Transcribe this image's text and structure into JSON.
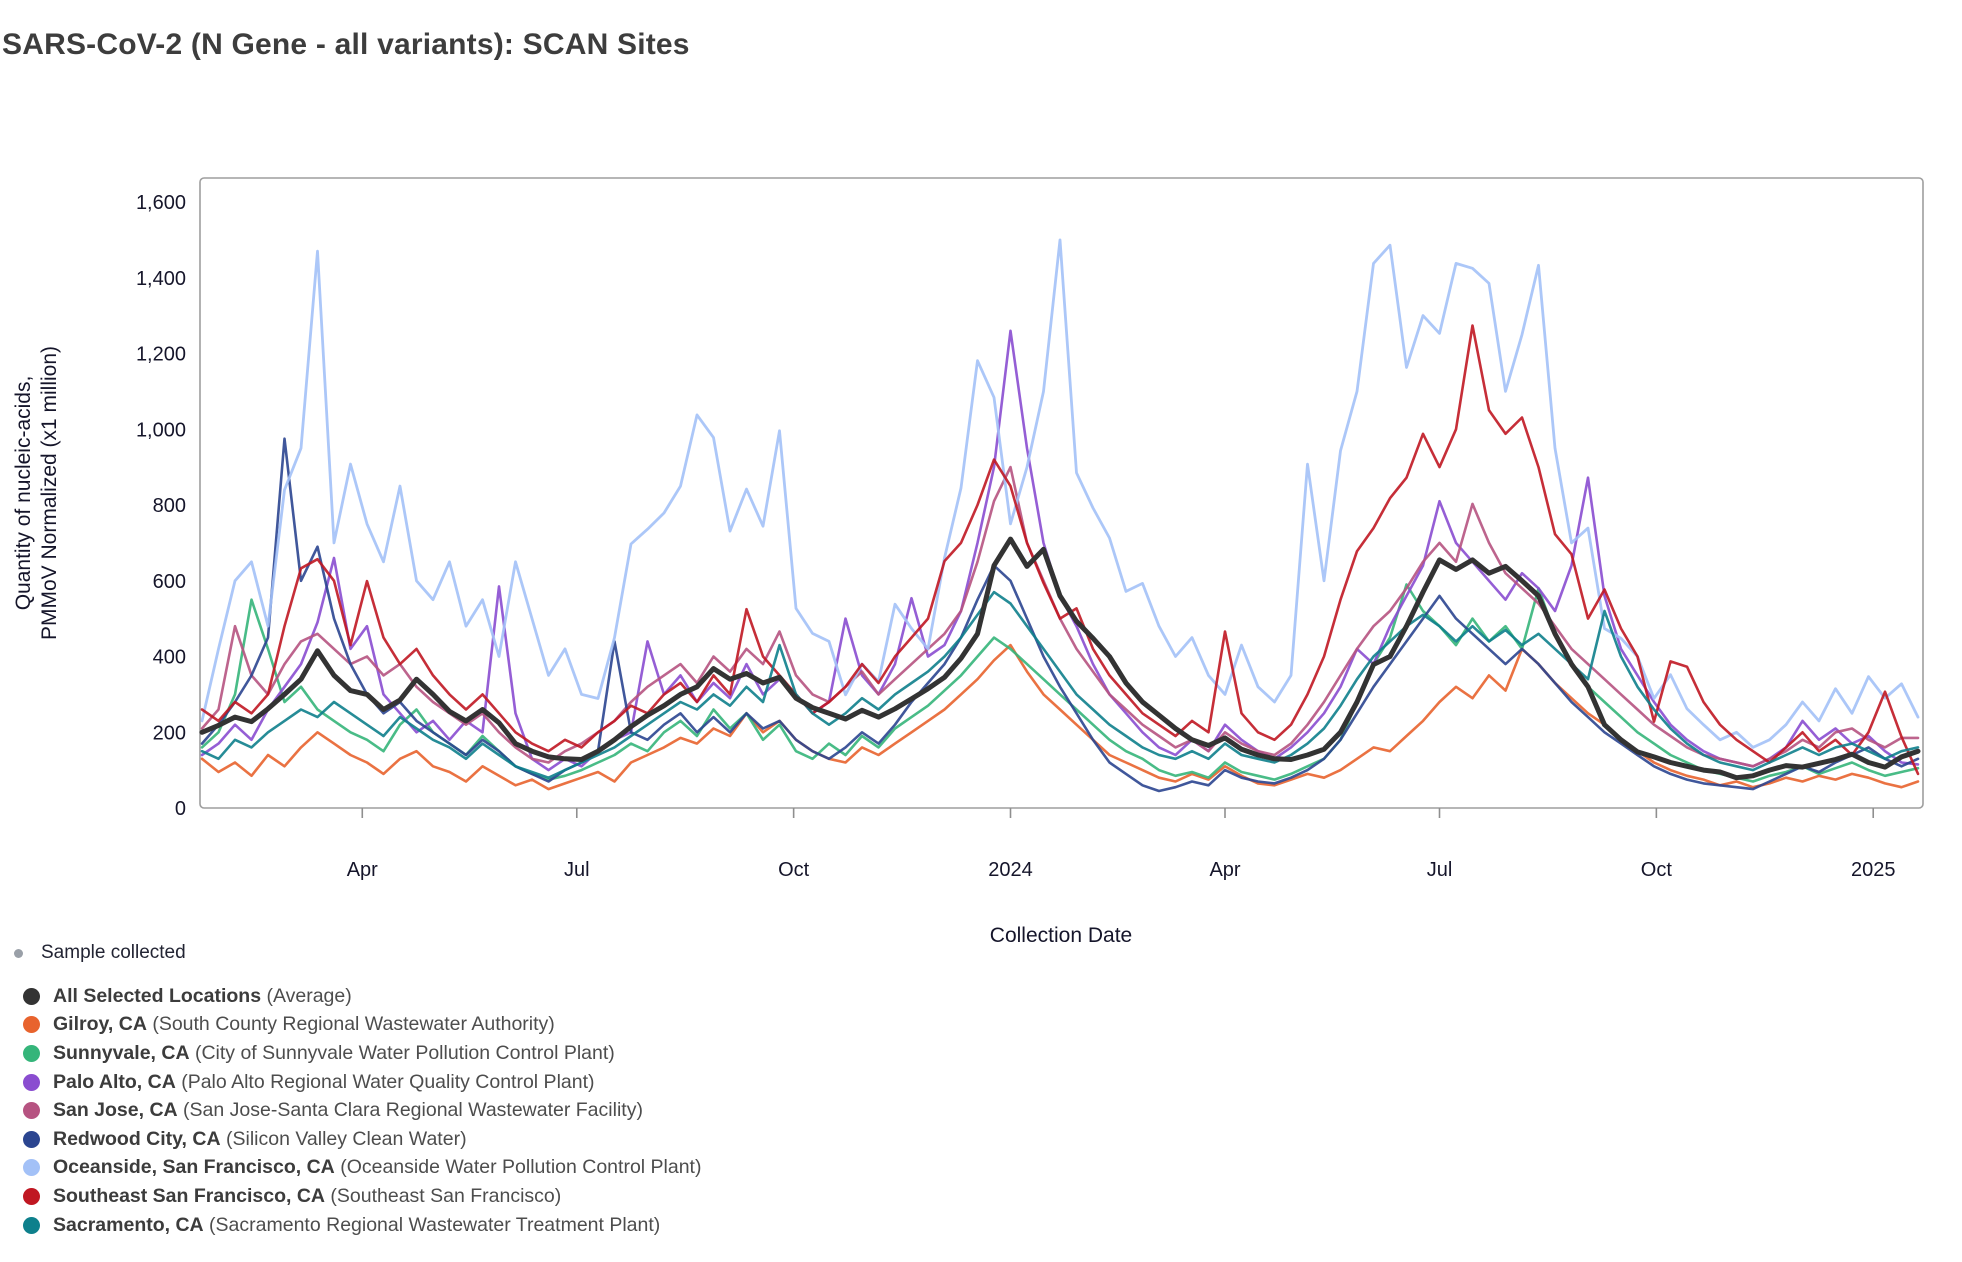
{
  "header": {
    "title": "SARS-CoV-2 (N Gene - all variants): SCAN Sites"
  },
  "axes": {
    "y_label_line1": "Quantity of nucleic-acids,",
    "y_label_line2": "PMMoV Normalized (x1 million)",
    "x_label": "Collection Date"
  },
  "legend": {
    "sample_collected_label": "Sample collected",
    "sample_dot_color": "#9aa0a8",
    "series": [
      {
        "key": "average",
        "location": "All Selected Locations",
        "detail": "(Average)",
        "color": "#333333"
      },
      {
        "key": "gilroy",
        "location": "Gilroy, CA",
        "detail": "(South County Regional Wastewater Authority)",
        "color": "#e8632d"
      },
      {
        "key": "sunnyvale",
        "location": "Sunnyvale, CA",
        "detail": "(City of Sunnyvale Water Pollution Control Plant)",
        "color": "#35b57a"
      },
      {
        "key": "palo_alto",
        "location": "Palo Alto, CA",
        "detail": "(Palo Alto Regional Water Quality Control Plant)",
        "color": "#8a4dd0"
      },
      {
        "key": "san_jose",
        "location": "San Jose, CA",
        "detail": "(San Jose-Santa Clara Regional Wastewater Facility)",
        "color": "#b65381"
      },
      {
        "key": "redwood_city",
        "location": "Redwood City, CA",
        "detail": "(Silicon Valley Clean Water)",
        "color": "#2b4590"
      },
      {
        "key": "oceanside",
        "location": "Oceanside, San Francisco, CA",
        "detail": "(Oceanside Water Pollution Control Plant)",
        "color": "#a3c1f7"
      },
      {
        "key": "southeast_sf",
        "location": "Southeast San Francisco, CA",
        "detail": "(Southeast San Francisco)",
        "color": "#c01722"
      },
      {
        "key": "sacramento",
        "location": "Sacramento, CA",
        "detail": "(Sacramento Regional Wastewater Treatment Plant)",
        "color": "#0e808c"
      }
    ]
  },
  "chart_data": {
    "type": "line",
    "title": "SARS-CoV-2 (N Gene - all variants): SCAN Sites",
    "xlabel": "Collection Date",
    "ylabel": "Quantity of nucleic-acids, PMMoV Normalized (x1 million)",
    "ylim": [
      0,
      1600
    ],
    "grid": false,
    "legend_position": "bottom-left",
    "x_start_date": "2023-01-23",
    "x_interval_days": 7,
    "n_points": 105,
    "y_ticks": [
      {
        "v": 0,
        "label": "0"
      },
      {
        "v": 200,
        "label": "200"
      },
      {
        "v": 400,
        "label": "400"
      },
      {
        "v": 600,
        "label": "600"
      },
      {
        "v": 800,
        "label": "800"
      },
      {
        "v": 1000,
        "label": "1,000"
      },
      {
        "v": 1200,
        "label": "1,200"
      },
      {
        "v": 1400,
        "label": "1,400"
      },
      {
        "v": 1600,
        "label": "1,600"
      }
    ],
    "x_ticks": [
      {
        "pos": 9.714,
        "label": "Apr"
      },
      {
        "pos": 22.714,
        "label": "Jul"
      },
      {
        "pos": 35.857,
        "label": "Oct"
      },
      {
        "pos": 49,
        "label": "2024"
      },
      {
        "pos": 62,
        "label": "Apr"
      },
      {
        "pos": 75,
        "label": "Jul"
      },
      {
        "pos": 88.143,
        "label": "Oct"
      },
      {
        "pos": 101.286,
        "label": "2025"
      }
    ],
    "series": [
      {
        "key": "gilroy",
        "name": "Gilroy, CA (South County Regional Wastewater Authority)",
        "color": "#e8632d",
        "line_width": 2.6,
        "values": [
          130,
          95,
          120,
          85,
          140,
          110,
          160,
          200,
          170,
          140,
          120,
          90,
          130,
          150,
          110,
          95,
          70,
          110,
          85,
          60,
          75,
          50,
          65,
          80,
          95,
          70,
          120,
          140,
          160,
          185,
          170,
          210,
          190,
          250,
          200,
          230,
          180,
          150,
          130,
          120,
          160,
          140,
          170,
          200,
          230,
          260,
          300,
          340,
          390,
          430,
          360,
          300,
          260,
          220,
          180,
          140,
          120,
          100,
          80,
          70,
          90,
          75,
          110,
          85,
          65,
          60,
          75,
          90,
          80,
          100,
          130,
          160,
          150,
          190,
          230,
          280,
          320,
          290,
          350,
          310,
          420,
          380,
          330,
          290,
          250,
          220,
          180,
          150,
          120,
          100,
          85,
          75,
          60,
          70,
          55,
          65,
          80,
          70,
          85,
          75,
          90,
          80,
          65,
          55,
          70
        ]
      },
      {
        "key": "sunnyvale",
        "name": "Sunnyvale, CA (City of Sunnyvale Water Pollution Control Plant)",
        "color": "#35b57a",
        "line_width": 2.6,
        "values": [
          160,
          200,
          300,
          550,
          420,
          280,
          320,
          260,
          230,
          200,
          180,
          150,
          220,
          260,
          200,
          170,
          140,
          190,
          150,
          110,
          90,
          75,
          85,
          100,
          120,
          140,
          170,
          150,
          200,
          230,
          190,
          260,
          210,
          250,
          180,
          220,
          150,
          130,
          170,
          140,
          190,
          160,
          210,
          240,
          270,
          310,
          350,
          400,
          450,
          420,
          380,
          340,
          300,
          260,
          220,
          180,
          150,
          130,
          100,
          85,
          95,
          80,
          120,
          95,
          85,
          75,
          90,
          110,
          130,
          180,
          280,
          380,
          450,
          590,
          520,
          480,
          430,
          500,
          440,
          480,
          420,
          580,
          460,
          380,
          320,
          280,
          240,
          200,
          170,
          140,
          120,
          100,
          90,
          80,
          70,
          85,
          95,
          110,
          90,
          105,
          120,
          100,
          85,
          95,
          105
        ]
      },
      {
        "key": "palo_alto",
        "name": "Palo Alto, CA (Palo Alto Regional Water Quality Control Plant)",
        "color": "#8a4dd0",
        "line_width": 2.6,
        "values": [
          140,
          170,
          220,
          180,
          260,
          320,
          380,
          490,
          660,
          420,
          480,
          300,
          250,
          200,
          230,
          180,
          230,
          200,
          585,
          250,
          130,
          100,
          130,
          110,
          150,
          180,
          200,
          440,
          300,
          350,
          280,
          330,
          290,
          380,
          300,
          340,
          300,
          250,
          280,
          500,
          350,
          300,
          380,
          554,
          400,
          430,
          520,
          700,
          900,
          1260,
          950,
          700,
          560,
          480,
          380,
          300,
          250,
          200,
          160,
          140,
          180,
          150,
          220,
          180,
          150,
          130,
          160,
          200,
          250,
          320,
          420,
          380,
          480,
          560,
          640,
          810,
          700,
          650,
          600,
          550,
          620,
          580,
          520,
          640,
          872,
          560,
          420,
          350,
          280,
          220,
          180,
          150,
          130,
          120,
          110,
          130,
          160,
          230,
          180,
          210,
          170,
          190,
          150,
          120,
          115
        ]
      },
      {
        "key": "san_jose",
        "name": "San Jose, CA (San Jose-Santa Clara Regional Wastewater Facility)",
        "color": "#b65381",
        "line_width": 2.6,
        "values": [
          210,
          260,
          480,
          350,
          300,
          380,
          440,
          460,
          420,
          380,
          400,
          350,
          380,
          320,
          280,
          250,
          220,
          250,
          200,
          160,
          130,
          120,
          150,
          170,
          200,
          230,
          280,
          320,
          350,
          380,
          330,
          400,
          360,
          420,
          380,
          466,
          350,
          300,
          280,
          320,
          360,
          300,
          340,
          380,
          420,
          460,
          520,
          650,
          810,
          900,
          700,
          600,
          500,
          420,
          360,
          300,
          260,
          220,
          190,
          160,
          180,
          150,
          200,
          170,
          150,
          140,
          170,
          220,
          280,
          350,
          420,
          480,
          520,
          580,
          650,
          700,
          650,
          803,
          700,
          620,
          580,
          540,
          480,
          420,
          380,
          340,
          300,
          260,
          220,
          190,
          160,
          140,
          130,
          120,
          110,
          130,
          150,
          180,
          160,
          200,
          210,
          180,
          160,
          185,
          185
        ]
      },
      {
        "key": "redwood_city",
        "name": "Redwood City, CA (Silicon Valley Clean Water)",
        "color": "#2b4590",
        "line_width": 2.6,
        "values": [
          170,
          220,
          280,
          350,
          450,
          975,
          600,
          690,
          500,
          380,
          300,
          250,
          280,
          230,
          200,
          170,
          140,
          180,
          150,
          110,
          90,
          70,
          100,
          120,
          150,
          440,
          200,
          180,
          220,
          250,
          200,
          240,
          200,
          250,
          210,
          230,
          180,
          150,
          130,
          160,
          200,
          170,
          220,
          280,
          330,
          380,
          450,
          550,
          640,
          600,
          500,
          400,
          320,
          250,
          180,
          120,
          90,
          60,
          45,
          55,
          70,
          60,
          100,
          80,
          70,
          65,
          80,
          100,
          130,
          180,
          250,
          320,
          380,
          440,
          500,
          560,
          500,
          460,
          420,
          380,
          420,
          380,
          330,
          280,
          240,
          200,
          170,
          140,
          110,
          90,
          75,
          65,
          60,
          55,
          50,
          70,
          90,
          110,
          95,
          120,
          140,
          160,
          130,
          110,
          130
        ]
      },
      {
        "key": "oceanside",
        "name": "Oceanside, San Francisco, CA (Oceanside Water Pollution Control Plant)",
        "color": "#a3c1f7",
        "line_width": 2.8,
        "values": [
          230,
          420,
          600,
          650,
          480,
          840,
          950,
          1470,
          700,
          908,
          750,
          650,
          850,
          600,
          550,
          650,
          480,
          550,
          400,
          650,
          500,
          350,
          420,
          300,
          289,
          450,
          697,
          736,
          779,
          850,
          1038,
          978,
          731,
          842,
          744,
          996,
          527,
          461,
          440,
          299,
          380,
          334,
          538,
          474,
          420,
          660,
          845,
          1181,
          1084,
          750,
          900,
          1100,
          1500,
          885,
          792,
          713,
          572,
          593,
          480,
          400,
          450,
          350,
          300,
          430,
          320,
          280,
          350,
          908,
          600,
          943,
          1100,
          1438,
          1486,
          1163,
          1300,
          1253,
          1438,
          1425,
          1385,
          1100,
          1250,
          1433,
          950,
          700,
          739,
          474,
          448,
          400,
          289,
          352,
          262,
          220,
          180,
          200,
          160,
          180,
          220,
          280,
          230,
          315,
          250,
          347,
          290,
          328,
          240
        ]
      },
      {
        "key": "southeast_sf",
        "name": "Southeast San Francisco, CA (Southeast San Francisco)",
        "color": "#c01722",
        "line_width": 2.6,
        "values": [
          260,
          230,
          280,
          250,
          300,
          480,
          633,
          657,
          600,
          430,
          599,
          450,
          380,
          420,
          350,
          300,
          260,
          300,
          250,
          200,
          170,
          150,
          180,
          160,
          200,
          230,
          270,
          250,
          300,
          330,
          280,
          350,
          300,
          525,
          400,
          350,
          300,
          250,
          280,
          320,
          380,
          330,
          400,
          450,
          500,
          652,
          700,
          800,
          920,
          850,
          700,
          594,
          500,
          527,
          420,
          350,
          300,
          250,
          220,
          190,
          230,
          200,
          466,
          250,
          200,
          180,
          220,
          300,
          400,
          550,
          678,
          739,
          818,
          872,
          988,
          900,
          1000,
          1274,
          1050,
          988,
          1031,
          900,
          723,
          670,
          500,
          577,
          474,
          400,
          228,
          387,
          373,
          280,
          220,
          180,
          150,
          120,
          160,
          200,
          150,
          180,
          140,
          200,
          307,
          188,
          90
        ]
      },
      {
        "key": "sacramento",
        "name": "Sacramento, CA (Sacramento Regional Wastewater Treatment Plant)",
        "color": "#0e808c",
        "line_width": 2.6,
        "values": [
          150,
          130,
          180,
          160,
          200,
          230,
          260,
          240,
          280,
          250,
          220,
          190,
          240,
          210,
          180,
          160,
          130,
          170,
          140,
          110,
          95,
          80,
          100,
          120,
          140,
          160,
          190,
          220,
          250,
          280,
          260,
          300,
          270,
          320,
          280,
          430,
          300,
          250,
          220,
          250,
          290,
          260,
          300,
          330,
          360,
          400,
          450,
          510,
          570,
          540,
          480,
          420,
          360,
          300,
          260,
          220,
          190,
          160,
          140,
          130,
          150,
          130,
          170,
          140,
          130,
          120,
          140,
          170,
          210,
          270,
          340,
          400,
          440,
          480,
          510,
          480,
          440,
          480,
          440,
          470,
          430,
          460,
          420,
          380,
          340,
          520,
          400,
          320,
          260,
          210,
          170,
          140,
          120,
          110,
          100,
          120,
          140,
          160,
          140,
          160,
          170,
          150,
          130,
          150,
          160
        ]
      },
      {
        "key": "average",
        "name": "All Selected Locations (Average)",
        "color": "#333333",
        "line_width": 5,
        "values": [
          200,
          218,
          240,
          228,
          262,
          300,
          340,
          415,
          350,
          310,
          300,
          260,
          285,
          340,
          300,
          255,
          230,
          260,
          225,
          170,
          150,
          135,
          130,
          128,
          150,
          180,
          215,
          245,
          270,
          300,
          320,
          368,
          340,
          355,
          330,
          345,
          290,
          265,
          250,
          235,
          258,
          240,
          262,
          288,
          315,
          345,
          395,
          460,
          640,
          710,
          638,
          683,
          560,
          493,
          448,
          400,
          330,
          280,
          245,
          210,
          180,
          165,
          185,
          155,
          140,
          130,
          128,
          140,
          155,
          200,
          280,
          379,
          400,
          480,
          570,
          655,
          630,
          655,
          620,
          638,
          600,
          560,
          460,
          380,
          320,
          220,
          180,
          148,
          135,
          120,
          110,
          100,
          95,
          80,
          85,
          100,
          112,
          108,
          118,
          128,
          142,
          120,
          108,
          135,
          150
        ]
      }
    ]
  }
}
